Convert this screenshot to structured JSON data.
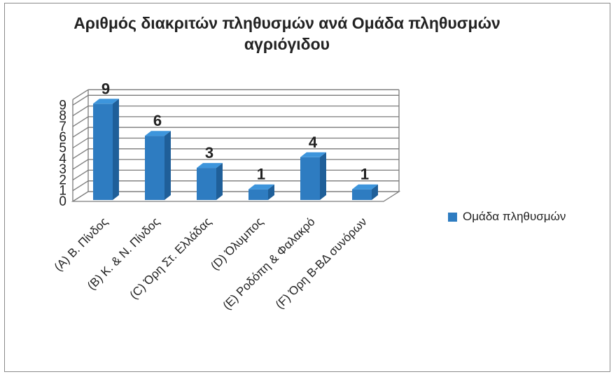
{
  "chart_data": {
    "type": "bar",
    "title": "Αριθμός διακριτών πληθυσμών ανά Ομάδα πληθυσμών αγριόγιδου",
    "title_lines": [
      "Αριθμός διακριτών πληθυσμών ανά Ομάδα πληθυσμών",
      "αγριόγιδου"
    ],
    "categories": [
      "(A) Β. Πίνδος",
      "(B) Κ. & Ν. Πίνδος",
      "(C) Όρη Στ. Ελλάδας",
      "(D) Όλυμπος",
      "(E) Ροδόπη & Φαλακρό",
      "(F) Όρη Β-ΒΔ συνόρων"
    ],
    "series": [
      {
        "name": "Ομάδα πληθυσμών",
        "values": [
          9,
          6,
          3,
          1,
          4,
          1
        ],
        "color": "#2e7cc1"
      }
    ],
    "yticks": [
      "0",
      "1",
      "2",
      "3",
      "4",
      "5",
      "6",
      "7",
      "8",
      "9"
    ],
    "ylim": [
      0,
      9
    ],
    "xlabel": "",
    "ylabel": "",
    "grid": true,
    "style": "3d",
    "legend": "right"
  }
}
